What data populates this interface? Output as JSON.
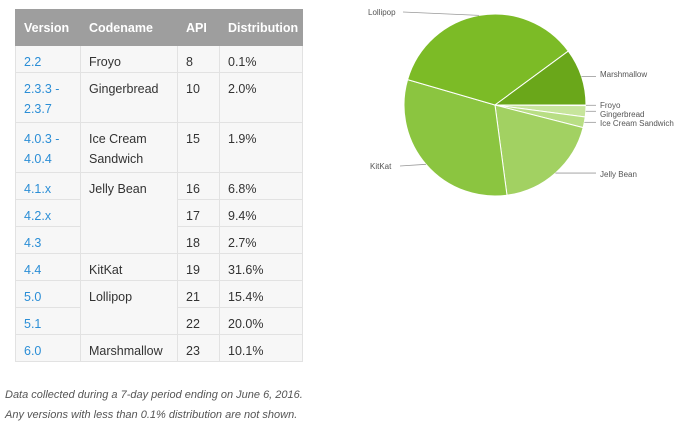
{
  "table": {
    "headers": [
      "Version",
      "Codename",
      "API",
      "Distribution"
    ],
    "rows": [
      {
        "version": "2.2",
        "codename": "Froyo",
        "api": "8",
        "distribution": "0.1%"
      },
      {
        "version": "2.3.3 - 2.3.7",
        "codename": "Gingerbread",
        "api": "10",
        "distribution": "2.0%"
      },
      {
        "version": "4.0.3 - 4.0.4",
        "codename": "Ice Cream Sandwich",
        "api": "15",
        "distribution": "1.9%"
      },
      {
        "version": "4.1.x",
        "codename": "Jelly Bean",
        "api": "16",
        "distribution": "6.8%"
      },
      {
        "version": "4.2.x",
        "codename": "",
        "api": "17",
        "distribution": "9.4%"
      },
      {
        "version": "4.3",
        "codename": "",
        "api": "18",
        "distribution": "2.7%"
      },
      {
        "version": "4.4",
        "codename": "KitKat",
        "api": "19",
        "distribution": "31.6%"
      },
      {
        "version": "5.0",
        "codename": "Lollipop",
        "api": "21",
        "distribution": "15.4%"
      },
      {
        "version": "5.1",
        "codename": "",
        "api": "22",
        "distribution": "20.0%"
      },
      {
        "version": "6.0",
        "codename": "Marshmallow",
        "api": "23",
        "distribution": "10.1%"
      }
    ]
  },
  "footnotes": [
    "Data collected during a 7-day period ending on June 6, 2016.",
    "Any versions with less than 0.1% distribution are not shown."
  ],
  "colors": {
    "header_bg": "#9e9e9e",
    "link": "#2b8ed6",
    "Froyo": "#d6ecb5",
    "Gingerbread": "#c7e59c",
    "Ice Cream Sandwich": "#b8de84",
    "Jelly Bean": "#a2d162",
    "KitKat": "#8bc540",
    "Lollipop": "#7cbb26",
    "Marshmallow": "#6aa71a"
  },
  "chart_data": {
    "type": "pie",
    "slices": [
      {
        "label": "Froyo",
        "value": 0.1
      },
      {
        "label": "Gingerbread",
        "value": 2.0
      },
      {
        "label": "Ice Cream Sandwich",
        "value": 1.9
      },
      {
        "label": "Jelly Bean",
        "value": 18.9
      },
      {
        "label": "KitKat",
        "value": 31.6
      },
      {
        "label": "Lollipop",
        "value": 35.4
      },
      {
        "label": "Marshmallow",
        "value": 10.1
      }
    ],
    "start": "3 o'clock",
    "direction": "clockwise"
  }
}
